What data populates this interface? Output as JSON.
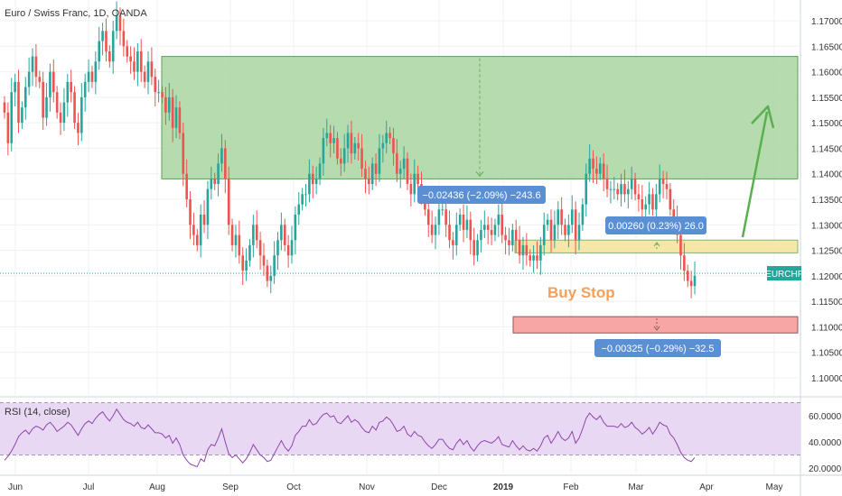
{
  "chart_data": {
    "type": "candlestick",
    "title": "Euro / Swiss Franc, 1D, OANDA",
    "symbol": "EURCHF",
    "price_axis": {
      "range": [
        1.0955,
        1.1745
      ],
      "ticks": [
        "1.17000",
        "1.16500",
        "1.16000",
        "1.15500",
        "1.15000",
        "1.14500",
        "1.14000",
        "1.13500",
        "1.13000",
        "1.12500",
        "1.12000",
        "1.11500",
        "1.11000",
        "1.10500",
        "1.10000"
      ]
    },
    "time_axis": {
      "labels": [
        "Jun",
        "Jul",
        "Aug",
        "Sep",
        "Oct",
        "Nov",
        "Dec",
        "2019",
        "Feb",
        "Mar",
        "Apr",
        "May"
      ],
      "bold_label": "2019"
    },
    "last_price": 1.1205,
    "candles": [
      1.152,
      1.146,
      1.156,
      1.158,
      1.15,
      1.153,
      1.157,
      1.16,
      1.163,
      1.159,
      1.158,
      1.151,
      1.155,
      1.16,
      1.156,
      1.152,
      1.15,
      1.154,
      1.158,
      1.156,
      1.15,
      1.148,
      1.155,
      1.158,
      1.16,
      1.158,
      1.162,
      1.166,
      1.168,
      1.164,
      1.162,
      1.168,
      1.171,
      1.168,
      1.165,
      1.163,
      1.162,
      1.16,
      1.164,
      1.16,
      1.158,
      1.162,
      1.159,
      1.156,
      1.156,
      1.155,
      1.152,
      1.155,
      1.149,
      1.153,
      1.148,
      1.14,
      1.135,
      1.13,
      1.128,
      1.126,
      1.132,
      1.13,
      1.137,
      1.139,
      1.138,
      1.142,
      1.145,
      1.139,
      1.13,
      1.126,
      1.128,
      1.124,
      1.121,
      1.123,
      1.126,
      1.13,
      1.127,
      1.124,
      1.122,
      1.119,
      1.12,
      1.124,
      1.127,
      1.13,
      1.126,
      1.124,
      1.127,
      1.132,
      1.134,
      1.136,
      1.136,
      1.14,
      1.138,
      1.139,
      1.142,
      1.147,
      1.148,
      1.146,
      1.147,
      1.143,
      1.142,
      1.145,
      1.148,
      1.144,
      1.146,
      1.145,
      1.141,
      1.139,
      1.138,
      1.142,
      1.14,
      1.145,
      1.146,
      1.148,
      1.147,
      1.144,
      1.14,
      1.141,
      1.143,
      1.138,
      1.136,
      1.14,
      1.138,
      1.136,
      1.133,
      1.13,
      1.128,
      1.13,
      1.133,
      1.133,
      1.13,
      1.127,
      1.126,
      1.13,
      1.132,
      1.129,
      1.131,
      1.127,
      1.124,
      1.127,
      1.129,
      1.13,
      1.129,
      1.128,
      1.13,
      1.132,
      1.128,
      1.127,
      1.126,
      1.129,
      1.127,
      1.124,
      1.126,
      1.124,
      1.123,
      1.124,
      1.123,
      1.126,
      1.13,
      1.131,
      1.127,
      1.13,
      1.133,
      1.13,
      1.128,
      1.13,
      1.133,
      1.127,
      1.13,
      1.134,
      1.14,
      1.143,
      1.141,
      1.14,
      1.142,
      1.139,
      1.137,
      1.137,
      1.137,
      1.136,
      1.138,
      1.136,
      1.137,
      1.139,
      1.136,
      1.135,
      1.133,
      1.134,
      1.136,
      1.133,
      1.136,
      1.139,
      1.138,
      1.137,
      1.133,
      1.131,
      1.128,
      1.124,
      1.121,
      1.119,
      1.118,
      1.12
    ],
    "rsi": {
      "label": "RSI (14, close)",
      "ticks": [
        "60.0000",
        "40.0000",
        "20.0000"
      ],
      "range": [
        15,
        75
      ],
      "values": [
        26,
        29,
        33,
        38,
        44,
        47,
        49,
        46,
        50,
        52,
        51,
        49,
        53,
        55,
        52,
        48,
        50,
        52,
        55,
        53,
        49,
        45,
        50,
        54,
        56,
        54,
        58,
        61,
        63,
        59,
        56,
        60,
        65,
        61,
        57,
        55,
        54,
        52,
        55,
        51,
        50,
        53,
        50,
        47,
        47,
        46,
        43,
        45,
        39,
        43,
        38,
        30,
        26,
        23,
        22,
        21,
        27,
        25,
        34,
        38,
        37,
        43,
        50,
        40,
        31,
        28,
        30,
        27,
        24,
        27,
        32,
        38,
        34,
        30,
        28,
        25,
        26,
        31,
        36,
        41,
        36,
        33,
        37,
        45,
        48,
        52,
        52,
        57,
        53,
        54,
        58,
        61,
        62,
        59,
        60,
        55,
        54,
        57,
        60,
        55,
        57,
        55,
        51,
        48,
        47,
        52,
        49,
        55,
        56,
        59,
        57,
        53,
        48,
        49,
        52,
        46,
        44,
        48,
        45,
        44,
        40,
        37,
        35,
        38,
        42,
        42,
        38,
        35,
        34,
        39,
        42,
        38,
        41,
        36,
        33,
        37,
        40,
        41,
        40,
        39,
        41,
        44,
        38,
        37,
        36,
        41,
        37,
        34,
        37,
        34,
        33,
        35,
        33,
        37,
        43,
        45,
        39,
        43,
        48,
        43,
        41,
        43,
        48,
        39,
        43,
        50,
        58,
        62,
        59,
        57,
        60,
        55,
        52,
        52,
        52,
        51,
        54,
        51,
        52,
        55,
        51,
        49,
        46,
        48,
        51,
        46,
        50,
        55,
        53,
        52,
        46,
        43,
        38,
        32,
        28,
        26,
        25,
        28
      ]
    },
    "zones": {
      "target": {
        "top": 1.163,
        "bottom": 1.139,
        "color": "#a8d5a0"
      },
      "entry": {
        "top": 1.127,
        "bottom": 1.1245,
        "color": "#f6e7a8"
      },
      "stop": {
        "top": 1.112,
        "bottom": 1.1088,
        "color": "#f8a5a5"
      }
    },
    "measures": [
      {
        "text": "−0.02436 (−2.09%) −243.6"
      },
      {
        "text": "0.00260 (0.23%) 26.0"
      },
      {
        "text": "−0.00325 (−0.29%) −32.5"
      }
    ],
    "annotation": "Buy Stop",
    "colors": {
      "up": "#26a69a",
      "down": "#ef5350",
      "rsi_line": "#8e44ad",
      "rsi_band": "#e9d8f4",
      "measure_box": "#5b8fd4",
      "arrow": "#58b04f"
    }
  }
}
